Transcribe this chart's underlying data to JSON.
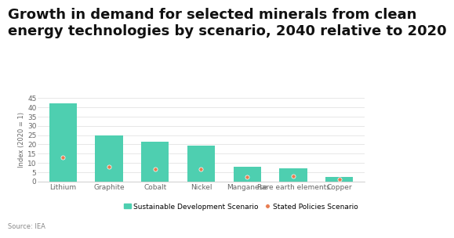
{
  "title": "Growth in demand for selected minerals from clean\nenergy technologies by scenario, 2040 relative to 2020",
  "categories": [
    "Lithium",
    "Graphite",
    "Cobalt",
    "Nickel",
    "Manganese",
    "Rare earth elements",
    "Copper"
  ],
  "bar_values": [
    42,
    25,
    21.5,
    19.5,
    8,
    7,
    2.5
  ],
  "dot_values": [
    13,
    8,
    6.5,
    6.5,
    2.5,
    3,
    1
  ],
  "bar_color": "#4ecfb0",
  "dot_color": "#e87c50",
  "ylabel": "Index (2020 = 1)",
  "ylim": [
    0,
    45
  ],
  "yticks": [
    0,
    5,
    10,
    15,
    20,
    25,
    30,
    35,
    40,
    45
  ],
  "legend_bar_label": "Sustainable Development Scenario",
  "legend_dot_label": "Stated Policies Scenario",
  "source": "Source: IEA",
  "bg_color": "#ffffff",
  "title_fontsize": 13,
  "axis_fontsize": 6.5,
  "legend_fontsize": 6.5
}
